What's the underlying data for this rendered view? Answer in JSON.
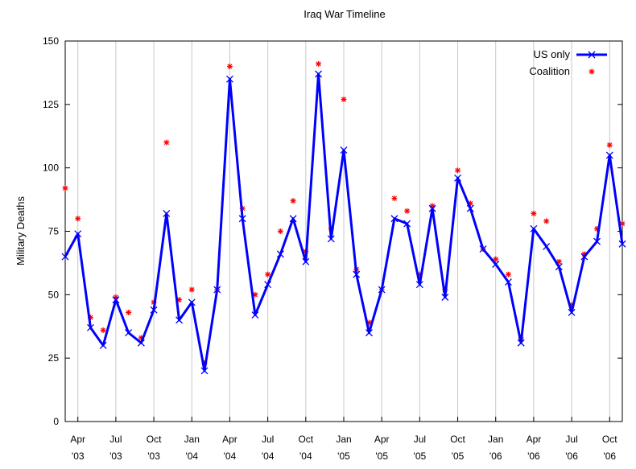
{
  "chart_data": {
    "type": "line",
    "title": "Iraq War Timeline",
    "xlabel": "",
    "ylabel": "Military Deaths",
    "ylim": [
      0,
      150
    ],
    "y_ticks": [
      0,
      25,
      50,
      75,
      100,
      125,
      150
    ],
    "grid": "vertical lines at labeled months",
    "legend_position": "top-right",
    "x_labels": [
      {
        "index": 1,
        "month": "Apr",
        "year": "'03"
      },
      {
        "index": 4,
        "month": "Jul",
        "year": "'03"
      },
      {
        "index": 7,
        "month": "Oct",
        "year": "'03"
      },
      {
        "index": 10,
        "month": "Jan",
        "year": "'04"
      },
      {
        "index": 13,
        "month": "Apr",
        "year": "'04"
      },
      {
        "index": 16,
        "month": "Jul",
        "year": "'04"
      },
      {
        "index": 19,
        "month": "Oct",
        "year": "'04"
      },
      {
        "index": 22,
        "month": "Jan",
        "year": "'05"
      },
      {
        "index": 25,
        "month": "Apr",
        "year": "'05"
      },
      {
        "index": 28,
        "month": "Jul",
        "year": "'05"
      },
      {
        "index": 31,
        "month": "Oct",
        "year": "'05"
      },
      {
        "index": 34,
        "month": "Jan",
        "year": "'06"
      },
      {
        "index": 37,
        "month": "Apr",
        "year": "'06"
      },
      {
        "index": 40,
        "month": "Jul",
        "year": "'06"
      },
      {
        "index": 43,
        "month": "Oct",
        "year": "'06"
      }
    ],
    "series": [
      {
        "name": "US only",
        "color": "#0000ff",
        "style": "line-with-x-markers",
        "values": [
          65,
          74,
          37,
          30,
          48,
          35,
          31,
          44,
          82,
          40,
          47,
          20,
          52,
          135,
          80,
          42,
          54,
          66,
          80,
          63,
          137,
          72,
          107,
          58,
          35,
          52,
          80,
          78,
          54,
          84,
          49,
          96,
          84,
          68,
          62,
          55,
          31,
          76,
          69,
          61,
          43,
          65,
          71,
          105,
          70
        ]
      },
      {
        "name": "Coalition",
        "color": "#ff0000",
        "style": "asterisk-markers",
        "values": [
          92,
          80,
          41,
          36,
          49,
          43,
          33,
          47,
          110,
          48,
          52,
          23,
          52,
          140,
          84,
          50,
          58,
          75,
          87,
          67,
          141,
          76,
          127,
          60,
          39,
          52,
          88,
          83,
          58,
          85,
          52,
          99,
          86,
          68,
          64,
          58,
          33,
          82,
          79,
          63,
          46,
          66,
          76,
          109,
          78
        ]
      }
    ]
  }
}
